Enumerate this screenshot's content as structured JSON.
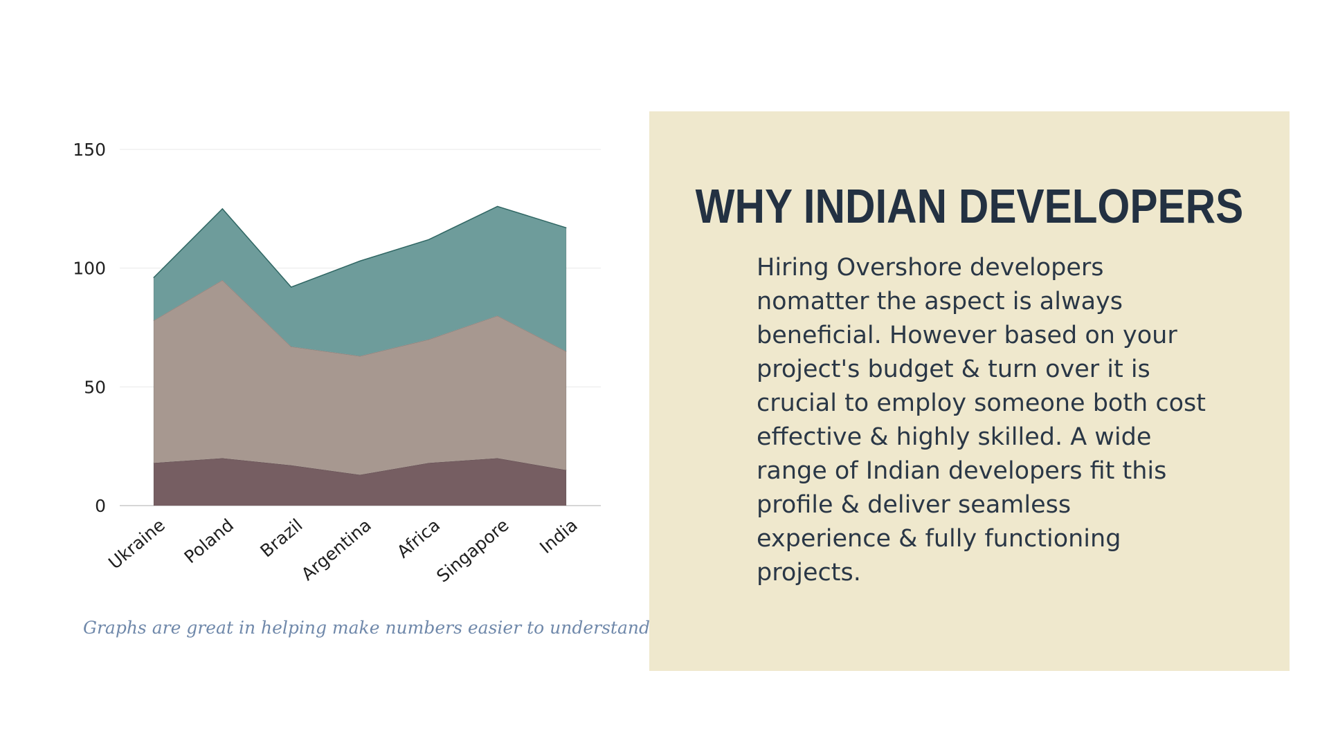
{
  "chart_data": {
    "type": "area",
    "stacked": true,
    "categories": [
      "Ukraine",
      "Poland",
      "Brazil",
      "Argentina",
      "Africa",
      "Singapore",
      "India"
    ],
    "series": [
      {
        "values": [
          18,
          20,
          17,
          13,
          18,
          20,
          15
        ],
        "color": "#765e62"
      },
      {
        "values": [
          60,
          75,
          50,
          50,
          52,
          60,
          50
        ],
        "color": "#a79890"
      },
      {
        "values": [
          18,
          30,
          25,
          40,
          42,
          46,
          52
        ],
        "color": "#6e9c9b"
      }
    ],
    "ylim": [
      0,
      150
    ],
    "yticks": [
      0,
      50,
      100,
      150
    ],
    "grid": true,
    "title": "",
    "xlabel": "",
    "ylabel": ""
  },
  "caption": "Graphs are great in helping make numbers easier to understand.",
  "panel": {
    "title": "WHY INDIAN DEVELOPERS",
    "body": "Hiring Overshore developers nomatter the aspect is always beneficial. However based on your project's budget & turn over it is crucial to employ someone both cost effective & highly skilled. A wide range of Indian developers fit this profile & deliver seamless experience & fully functioning projects."
  },
  "colors": {
    "panel_background": "#efe8cd",
    "title": "#233142",
    "caption": "#6f88aa"
  }
}
